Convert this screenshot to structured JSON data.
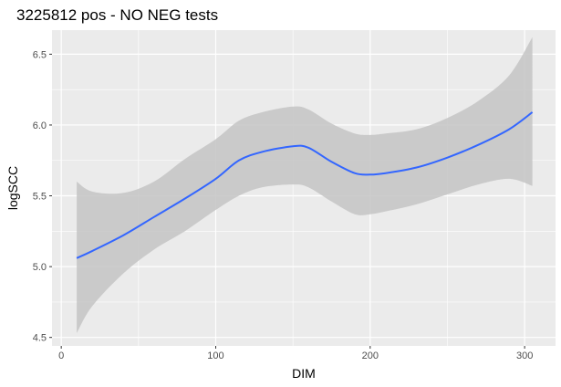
{
  "chart_data": {
    "type": "line",
    "title": "3225812 pos - NO NEG tests",
    "xlabel": "DIM",
    "ylabel": "logSCC",
    "xlim": [
      -6,
      320
    ],
    "ylim": [
      4.44,
      6.67
    ],
    "x_ticks": [
      0,
      100,
      200,
      300
    ],
    "x_tick_labels": [
      "0",
      "100",
      "200",
      "300"
    ],
    "y_ticks": [
      4.5,
      5.0,
      5.5,
      6.0,
      6.5
    ],
    "y_tick_labels": [
      "4.5",
      "5.0",
      "5.5",
      "6.0",
      "6.5"
    ],
    "grid": true,
    "legend": "none",
    "colors": {
      "panel": "#ebebeb",
      "grid": "#ffffff",
      "line": "#3366ff",
      "ribbon": "#c4c4c4"
    },
    "series": [
      {
        "x": [
          10,
          20,
          40,
          60,
          80,
          100,
          115,
          130,
          150,
          160,
          175,
          190,
          200,
          210,
          230,
          250,
          270,
          290,
          305
        ],
        "y": [
          5.06,
          5.11,
          5.22,
          5.35,
          5.48,
          5.62,
          5.75,
          5.81,
          5.85,
          5.84,
          5.74,
          5.66,
          5.65,
          5.66,
          5.7,
          5.77,
          5.86,
          5.97,
          6.09
        ],
        "lower": [
          4.53,
          4.72,
          4.95,
          5.12,
          5.25,
          5.4,
          5.5,
          5.56,
          5.58,
          5.56,
          5.46,
          5.37,
          5.37,
          5.39,
          5.44,
          5.51,
          5.58,
          5.62,
          5.57
        ],
        "upper": [
          5.6,
          5.53,
          5.52,
          5.6,
          5.76,
          5.9,
          6.03,
          6.09,
          6.13,
          6.11,
          6.01,
          5.94,
          5.93,
          5.94,
          5.97,
          6.05,
          6.17,
          6.35,
          6.62
        ]
      }
    ]
  }
}
